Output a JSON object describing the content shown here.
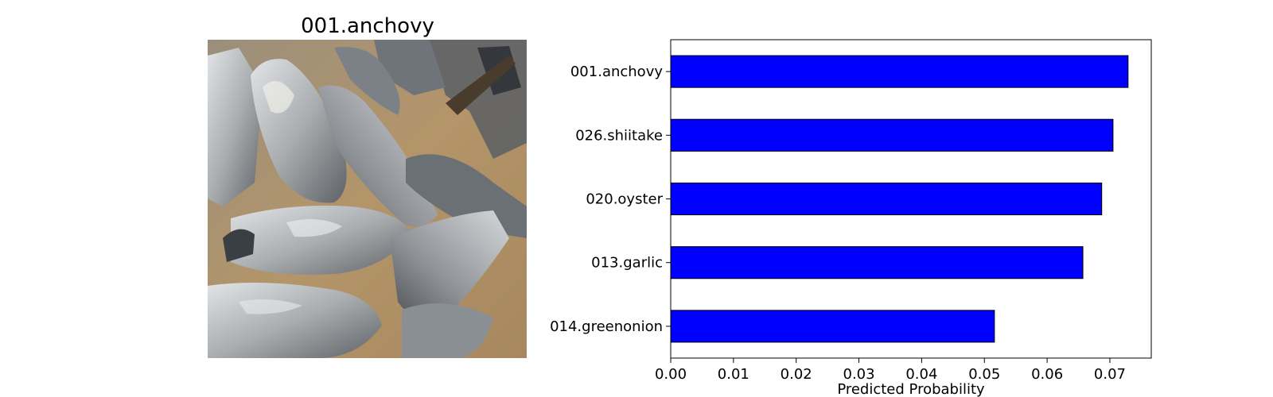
{
  "image_panel": {
    "title": "001.anchovy",
    "image_icon": "dried-anchovy-photo"
  },
  "chart_data": {
    "type": "bar",
    "orientation": "horizontal",
    "categories": [
      "001.anchovy",
      "026.shiitake",
      "020.oyster",
      "013.garlic",
      "014.greenonion"
    ],
    "values": [
      0.0729,
      0.0705,
      0.0687,
      0.0657,
      0.0516
    ],
    "xlabel": "Predicted Probability",
    "ylabel": "",
    "xlim": [
      0.0,
      0.0766
    ],
    "xticks": [
      "0.00",
      "0.01",
      "0.02",
      "0.03",
      "0.04",
      "0.05",
      "0.06",
      "0.07"
    ],
    "bar_color": "#0000ff",
    "edge_color": "#000000",
    "grid": false,
    "legend": "none"
  }
}
